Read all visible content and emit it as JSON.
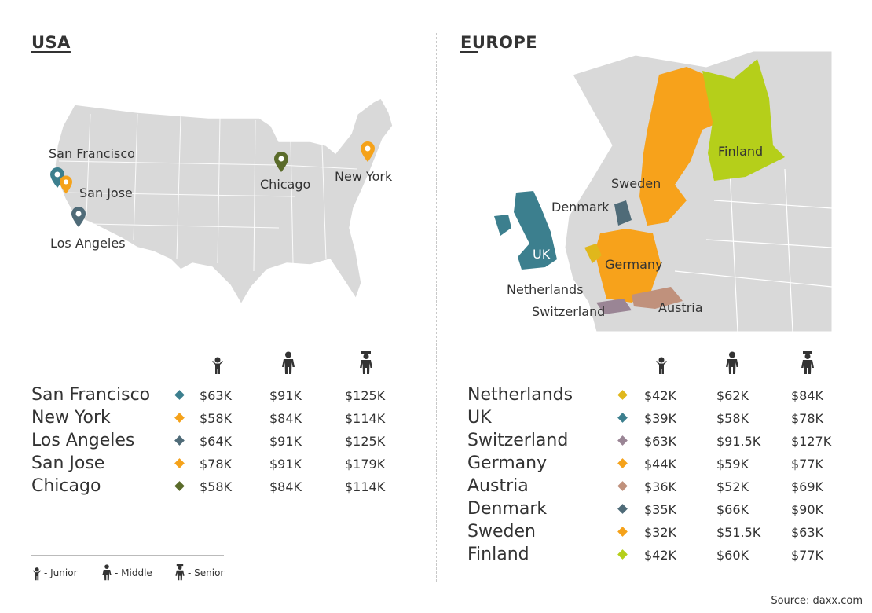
{
  "usa": {
    "title": "USA",
    "map_labels": {
      "san_francisco": "San Francisco",
      "san_jose": "San Jose",
      "los_angeles": "Los Angeles",
      "chicago": "Chicago",
      "new_york": "New York"
    },
    "rows": [
      {
        "name": "San Francisco",
        "color": "#3c7f8e",
        "junior": "$63K",
        "middle": "$91K",
        "senior": "$125K"
      },
      {
        "name": "New York",
        "color": "#f5a21a",
        "junior": "$58K",
        "middle": "$84K",
        "senior": "$114K"
      },
      {
        "name": "Los Angeles",
        "color": "#4f6b78",
        "junior": "$64K",
        "middle": "$91K",
        "senior": "$125K"
      },
      {
        "name": "San Jose",
        "color": "#f5a21a",
        "junior": "$78K",
        "middle": "$91K",
        "senior": "$179K"
      },
      {
        "name": "Chicago",
        "color": "#5a6b2a",
        "junior": "$58K",
        "middle": "$84K",
        "senior": "$114K"
      }
    ]
  },
  "europe": {
    "title": "EUROPE",
    "map_labels": {
      "sweden": "Sweden",
      "finland": "Finland",
      "denmark": "Denmark",
      "uk": "UK",
      "germany": "Germany",
      "netherlands": "Netherlands",
      "switzerland": "Switzerland",
      "austria": "Austria"
    },
    "rows": [
      {
        "name": "Netherlands",
        "color": "#e0b71c",
        "junior": "$42K",
        "middle": "$62K",
        "senior": "$84K"
      },
      {
        "name": "UK",
        "color": "#3c7f8e",
        "junior": "$39K",
        "middle": "$58K",
        "senior": "$78K"
      },
      {
        "name": "Switzerland",
        "color": "#9a8595",
        "junior": "$63K",
        "middle": "$91.5K",
        "senior": "$127K"
      },
      {
        "name": "Germany",
        "color": "#f5a21a",
        "junior": "$44K",
        "middle": "$59K",
        "senior": "$77K"
      },
      {
        "name": "Austria",
        "color": "#c0917c",
        "junior": "$36K",
        "middle": "$52K",
        "senior": "$69K"
      },
      {
        "name": "Denmark",
        "color": "#4f6b78",
        "junior": "$35K",
        "middle": "$66K",
        "senior": "$90K"
      },
      {
        "name": "Sweden",
        "color": "#f5a21a",
        "junior": "$32K",
        "middle": "$51.5K",
        "senior": "$63K"
      },
      {
        "name": "Finland",
        "color": "#b5cf1a",
        "junior": "$42K",
        "middle": "$60K",
        "senior": "$77K"
      }
    ]
  },
  "legend": {
    "junior": "- Junior",
    "middle": "- Middle",
    "senior": "- Senior"
  },
  "icons": [
    "junior-icon",
    "middle-icon",
    "senior-icon",
    "map-pin-icon"
  ],
  "source": "Source: daxx.com"
}
